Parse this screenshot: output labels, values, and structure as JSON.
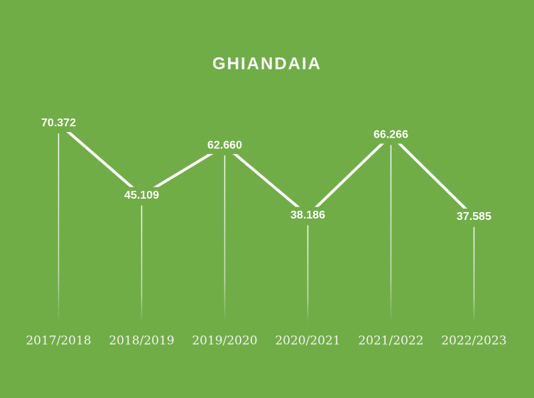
{
  "chart_data": {
    "type": "line",
    "title": "GHIANDAIA",
    "categories": [
      "2017/2018",
      "2018/2019",
      "2019/2020",
      "2020/2021",
      "2021/2022",
      "2022/2023"
    ],
    "values": [
      70372,
      45109,
      62660,
      38186,
      66266,
      37585
    ],
    "value_labels": [
      "70.372",
      "45.109",
      "62.660",
      "38.186",
      "66.266",
      "37.585"
    ],
    "color": "#ffffff"
  }
}
